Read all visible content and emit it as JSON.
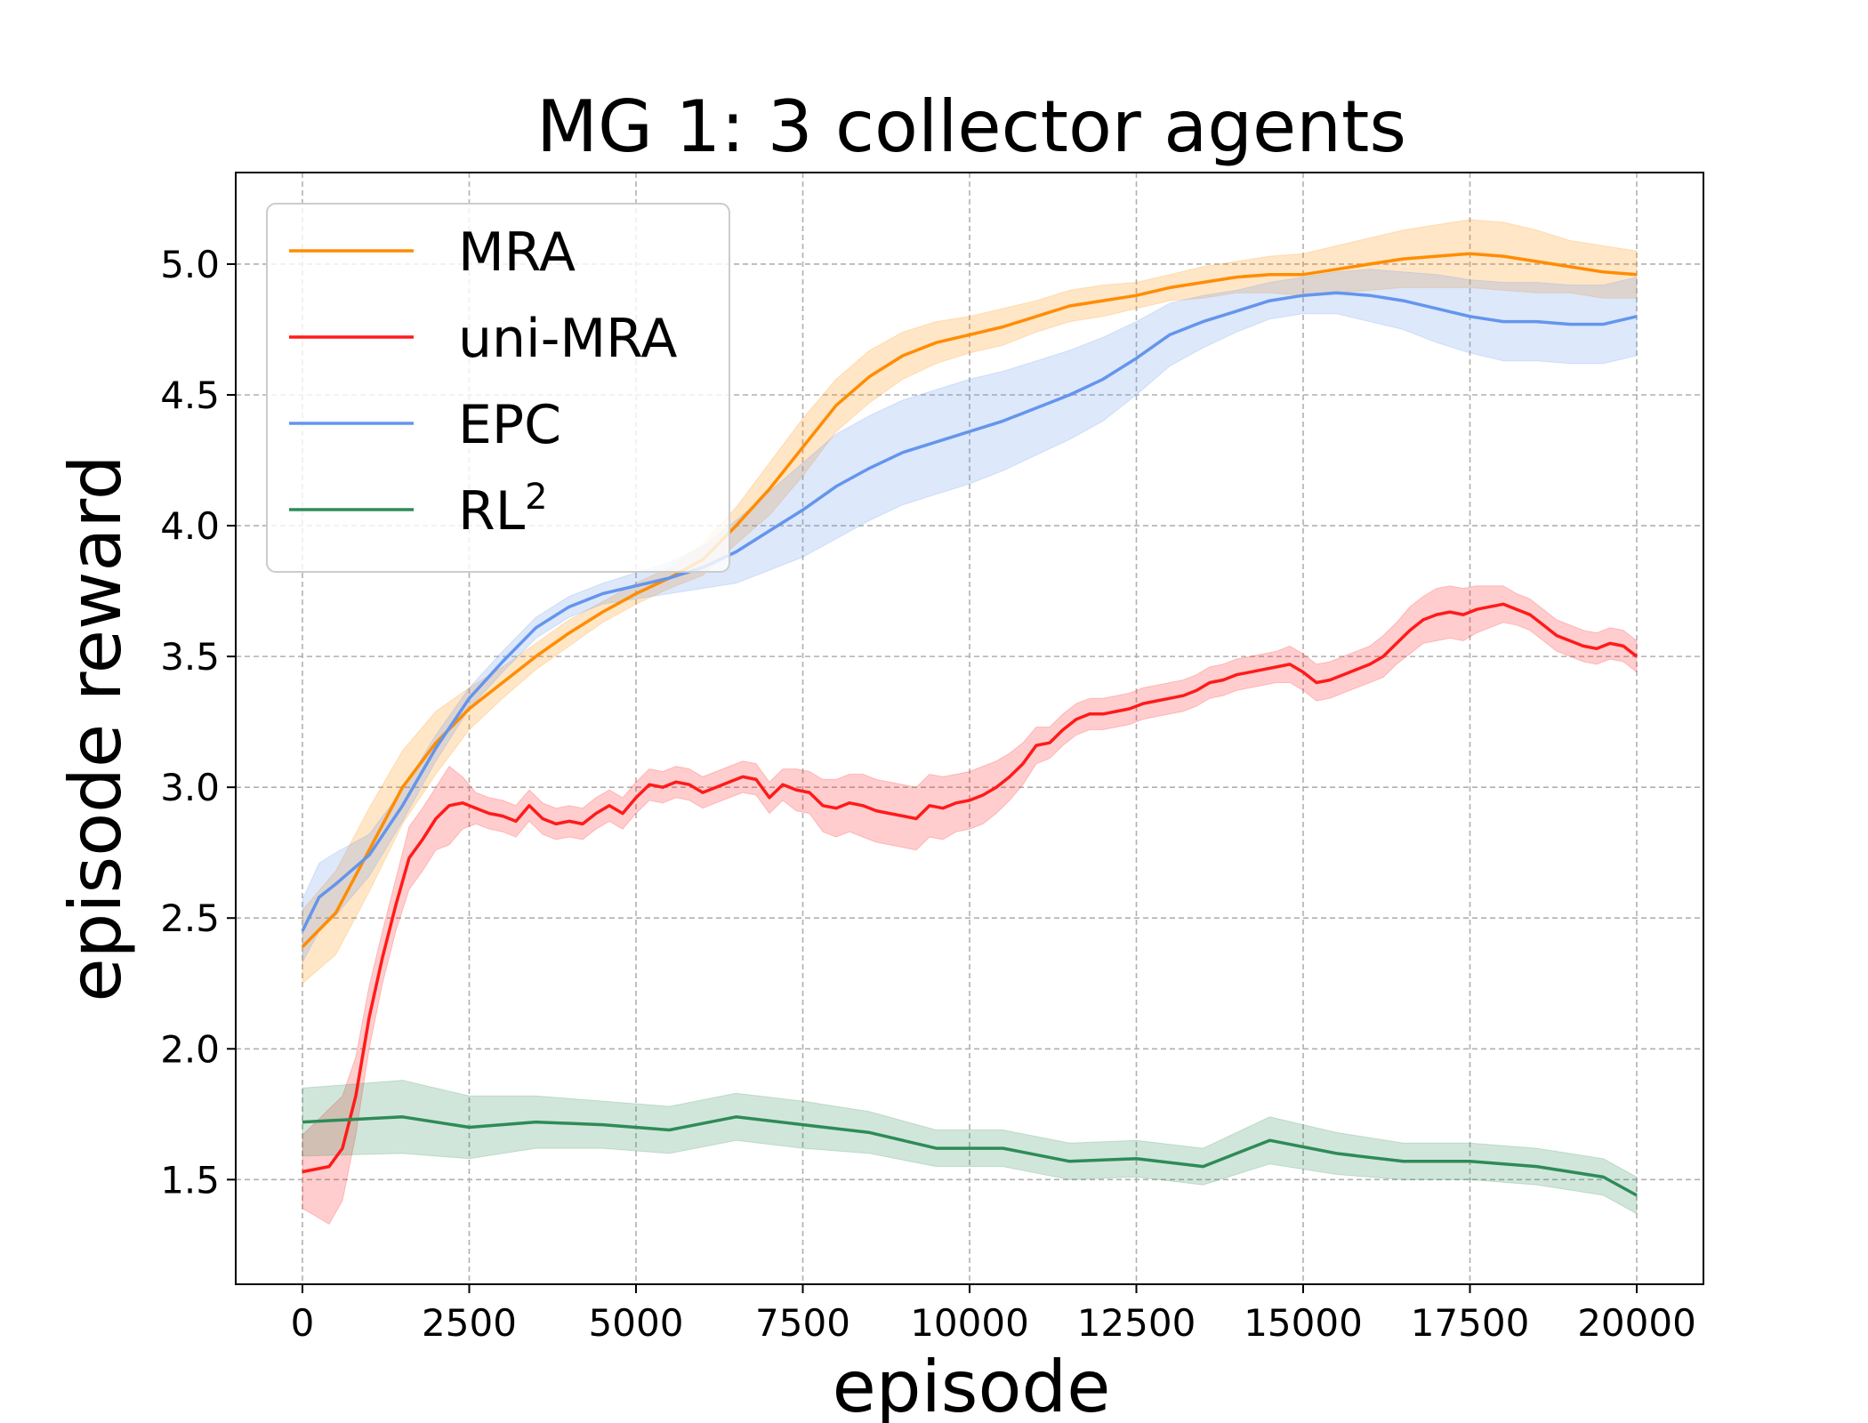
{
  "chart_data": {
    "type": "line",
    "title": "MG 1: 3 collector agents",
    "xlabel": "episode",
    "ylabel": "episode reward",
    "xlim": [
      -1000,
      21000
    ],
    "ylim": [
      1.1,
      5.35
    ],
    "xticks": [
      0,
      2500,
      5000,
      7500,
      10000,
      12500,
      15000,
      17500,
      20000
    ],
    "xtick_labels": [
      "0",
      "2500",
      "5000",
      "7500",
      "10000",
      "12500",
      "15000",
      "17500",
      "20000"
    ],
    "yticks": [
      1.5,
      2.0,
      2.5,
      3.0,
      3.5,
      4.0,
      4.5,
      5.0
    ],
    "ytick_labels": [
      "1.5",
      "2.0",
      "2.5",
      "3.0",
      "3.5",
      "4.0",
      "4.5",
      "5.0"
    ],
    "grid": true,
    "legend_position": "upper-left",
    "series": [
      {
        "name": "MRA",
        "label": "MRA",
        "color": "#ff8c00",
        "x": [
          0,
          500,
          1000,
          1500,
          2000,
          2500,
          3000,
          3500,
          4000,
          4500,
          5000,
          5500,
          6000,
          6500,
          7000,
          7500,
          8000,
          8500,
          9000,
          9500,
          10000,
          10500,
          11000,
          11500,
          12000,
          12500,
          13000,
          13500,
          14000,
          14500,
          15000,
          15500,
          16000,
          16500,
          17000,
          17500,
          18000,
          18500,
          19000,
          19500,
          20000
        ],
        "values": [
          2.39,
          2.52,
          2.76,
          3.0,
          3.17,
          3.3,
          3.4,
          3.5,
          3.59,
          3.67,
          3.74,
          3.8,
          3.87,
          4.0,
          4.14,
          4.3,
          4.46,
          4.57,
          4.65,
          4.7,
          4.73,
          4.76,
          4.8,
          4.84,
          4.86,
          4.88,
          4.91,
          4.93,
          4.95,
          4.96,
          4.96,
          4.98,
          5.0,
          5.02,
          5.03,
          5.04,
          5.03,
          5.01,
          4.99,
          4.97,
          4.96
        ],
        "band": [
          0.14,
          0.16,
          0.16,
          0.14,
          0.12,
          0.08,
          0.06,
          0.05,
          0.05,
          0.04,
          0.04,
          0.04,
          0.06,
          0.07,
          0.1,
          0.11,
          0.1,
          0.1,
          0.09,
          0.08,
          0.07,
          0.07,
          0.06,
          0.06,
          0.06,
          0.05,
          0.05,
          0.06,
          0.06,
          0.07,
          0.08,
          0.09,
          0.1,
          0.11,
          0.12,
          0.13,
          0.13,
          0.12,
          0.1,
          0.1,
          0.09
        ]
      },
      {
        "name": "uni-MRA",
        "label": "uni-MRA",
        "color": "#ff1a1a",
        "x": [
          0,
          200,
          400,
          600,
          800,
          1000,
          1200,
          1400,
          1600,
          1800,
          2000,
          2200,
          2400,
          2600,
          2800,
          3000,
          3200,
          3400,
          3600,
          3800,
          4000,
          4200,
          4400,
          4600,
          4800,
          5000,
          5200,
          5400,
          5600,
          5800,
          6000,
          6200,
          6400,
          6600,
          6800,
          7000,
          7200,
          7400,
          7600,
          7800,
          8000,
          8200,
          8400,
          8600,
          8800,
          9000,
          9200,
          9400,
          9600,
          9800,
          10000,
          10200,
          10400,
          10600,
          10800,
          11000,
          11200,
          11400,
          11600,
          11800,
          12000,
          12200,
          12400,
          12600,
          12800,
          13000,
          13200,
          13400,
          13600,
          13800,
          14000,
          14200,
          14400,
          14600,
          14800,
          15000,
          15200,
          15400,
          15600,
          15800,
          16000,
          16200,
          16400,
          16600,
          16800,
          17000,
          17200,
          17400,
          17600,
          17800,
          18000,
          18200,
          18400,
          18600,
          18800,
          19000,
          19200,
          19400,
          19600,
          19800,
          20000
        ],
        "values": [
          1.53,
          1.54,
          1.55,
          1.62,
          1.82,
          2.12,
          2.35,
          2.55,
          2.73,
          2.8,
          2.88,
          2.93,
          2.94,
          2.92,
          2.9,
          2.89,
          2.87,
          2.93,
          2.88,
          2.86,
          2.87,
          2.86,
          2.9,
          2.93,
          2.9,
          2.96,
          3.01,
          3.0,
          3.02,
          3.01,
          2.98,
          3.0,
          3.02,
          3.04,
          3.03,
          2.96,
          3.01,
          2.99,
          2.98,
          2.93,
          2.92,
          2.94,
          2.93,
          2.91,
          2.9,
          2.89,
          2.88,
          2.93,
          2.92,
          2.94,
          2.95,
          2.97,
          3.0,
          3.04,
          3.09,
          3.16,
          3.17,
          3.22,
          3.26,
          3.28,
          3.28,
          3.29,
          3.3,
          3.32,
          3.33,
          3.34,
          3.35,
          3.37,
          3.4,
          3.41,
          3.43,
          3.44,
          3.45,
          3.46,
          3.47,
          3.44,
          3.4,
          3.41,
          3.43,
          3.45,
          3.47,
          3.5,
          3.55,
          3.6,
          3.64,
          3.66,
          3.67,
          3.66,
          3.68,
          3.69,
          3.7,
          3.68,
          3.66,
          3.62,
          3.58,
          3.56,
          3.54,
          3.53,
          3.55,
          3.54,
          3.5
        ],
        "band": [
          0.14,
          0.18,
          0.22,
          0.2,
          0.15,
          0.12,
          0.1,
          0.1,
          0.12,
          0.12,
          0.12,
          0.15,
          0.1,
          0.06,
          0.06,
          0.06,
          0.06,
          0.06,
          0.06,
          0.06,
          0.06,
          0.06,
          0.06,
          0.06,
          0.06,
          0.06,
          0.06,
          0.06,
          0.06,
          0.06,
          0.06,
          0.06,
          0.06,
          0.06,
          0.06,
          0.06,
          0.06,
          0.08,
          0.08,
          0.1,
          0.11,
          0.11,
          0.12,
          0.12,
          0.12,
          0.12,
          0.12,
          0.12,
          0.12,
          0.11,
          0.11,
          0.11,
          0.1,
          0.09,
          0.08,
          0.07,
          0.06,
          0.06,
          0.06,
          0.06,
          0.06,
          0.06,
          0.06,
          0.06,
          0.06,
          0.06,
          0.06,
          0.06,
          0.06,
          0.06,
          0.06,
          0.06,
          0.06,
          0.06,
          0.07,
          0.07,
          0.07,
          0.07,
          0.07,
          0.07,
          0.07,
          0.08,
          0.08,
          0.09,
          0.09,
          0.1,
          0.1,
          0.1,
          0.09,
          0.08,
          0.07,
          0.06,
          0.06,
          0.06,
          0.06,
          0.06,
          0.06,
          0.06,
          0.06,
          0.06,
          0.06
        ]
      },
      {
        "name": "EPC",
        "label": "EPC",
        "color": "#6495ed",
        "x": [
          0,
          250,
          500,
          1000,
          1500,
          2000,
          2500,
          3000,
          3500,
          4000,
          4500,
          5000,
          5500,
          6000,
          6500,
          7000,
          7500,
          8000,
          8500,
          9000,
          9500,
          10000,
          10500,
          11000,
          11500,
          12000,
          12500,
          13000,
          13500,
          14000,
          14500,
          15000,
          15500,
          16000,
          16500,
          17000,
          17500,
          18000,
          18500,
          19000,
          19500,
          20000
        ],
        "values": [
          2.45,
          2.58,
          2.63,
          2.74,
          2.93,
          3.15,
          3.34,
          3.48,
          3.61,
          3.69,
          3.74,
          3.77,
          3.8,
          3.84,
          3.9,
          3.98,
          4.06,
          4.15,
          4.22,
          4.28,
          4.32,
          4.36,
          4.4,
          4.45,
          4.5,
          4.56,
          4.64,
          4.73,
          4.78,
          4.82,
          4.86,
          4.88,
          4.89,
          4.88,
          4.86,
          4.83,
          4.8,
          4.78,
          4.78,
          4.77,
          4.77,
          4.8
        ],
        "band": [
          0.12,
          0.13,
          0.12,
          0.08,
          0.06,
          0.05,
          0.04,
          0.04,
          0.04,
          0.04,
          0.04,
          0.05,
          0.06,
          0.08,
          0.12,
          0.15,
          0.18,
          0.2,
          0.2,
          0.2,
          0.2,
          0.2,
          0.19,
          0.18,
          0.17,
          0.16,
          0.14,
          0.12,
          0.1,
          0.08,
          0.07,
          0.07,
          0.08,
          0.1,
          0.11,
          0.13,
          0.14,
          0.15,
          0.15,
          0.15,
          0.15,
          0.15
        ]
      },
      {
        "name": "RL2",
        "label": "RL",
        "label_sup": "2",
        "color": "#2e8b57",
        "x": [
          0,
          1500,
          2500,
          3500,
          4500,
          5500,
          6500,
          7500,
          8500,
          9500,
          10500,
          11500,
          12500,
          13500,
          14500,
          15500,
          16500,
          17500,
          18500,
          19500,
          20000
        ],
        "values": [
          1.72,
          1.74,
          1.7,
          1.72,
          1.71,
          1.69,
          1.74,
          1.71,
          1.68,
          1.62,
          1.62,
          1.57,
          1.58,
          1.55,
          1.65,
          1.6,
          1.57,
          1.57,
          1.55,
          1.51,
          1.44
        ],
        "band": [
          0.13,
          0.14,
          0.12,
          0.1,
          0.09,
          0.09,
          0.09,
          0.09,
          0.08,
          0.07,
          0.07,
          0.07,
          0.07,
          0.07,
          0.09,
          0.08,
          0.07,
          0.07,
          0.07,
          0.07,
          0.07
        ]
      }
    ]
  }
}
